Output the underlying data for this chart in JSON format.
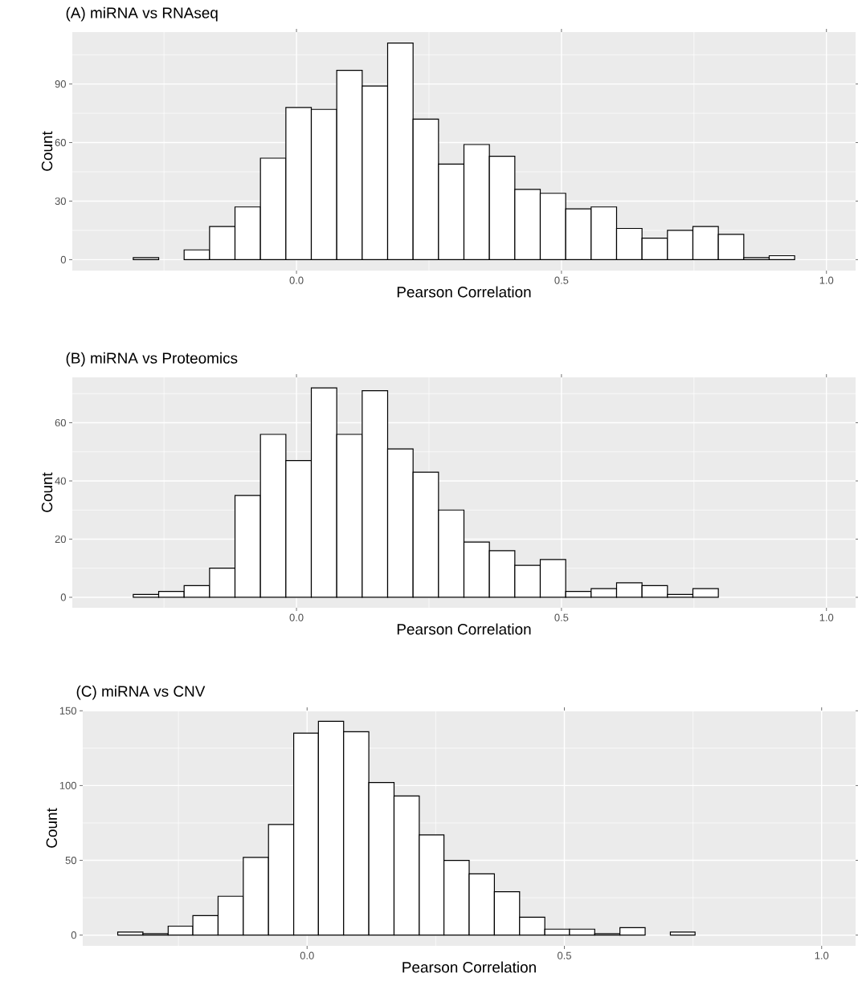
{
  "chart_data": [
    {
      "type": "histogram",
      "title": "(A) miRNA vs RNAseq",
      "xlabel": "Pearson Correlation",
      "ylabel": "Count",
      "color": "#ffffff",
      "grid": true,
      "bins": [
        -0.308,
        -0.26,
        -0.212,
        -0.164,
        -0.116,
        -0.068,
        -0.02,
        0.028,
        0.076,
        0.124,
        0.172,
        0.22,
        0.268,
        0.316,
        0.364,
        0.412,
        0.46,
        0.508,
        0.556,
        0.604,
        0.652,
        0.7,
        0.748,
        0.796,
        0.844,
        0.892,
        0.94
      ],
      "values": [
        1,
        0,
        5,
        17,
        27,
        52,
        78,
        77,
        97,
        89,
        111,
        72,
        49,
        59,
        53,
        36,
        34,
        26,
        27,
        16,
        11,
        15,
        17,
        13,
        1,
        2
      ],
      "xlim": [
        -0.423,
        1.055
      ],
      "ylim": [
        -5.6,
        116.6
      ],
      "xticks": [
        {
          "value": 0,
          "label": "0.0"
        },
        {
          "value": 0.5,
          "label": "0.5"
        },
        {
          "value": 1,
          "label": "1.0"
        }
      ],
      "yticks": [
        0,
        30,
        60,
        90
      ]
    },
    {
      "type": "histogram",
      "title": "(B) miRNA vs Proteomics",
      "xlabel": "Pearson Correlation",
      "ylabel": "Count",
      "color": "#ffffff",
      "grid": true,
      "bins": [
        -0.308,
        -0.26,
        -0.212,
        -0.164,
        -0.116,
        -0.068,
        -0.02,
        0.028,
        0.076,
        0.124,
        0.172,
        0.22,
        0.268,
        0.316,
        0.364,
        0.412,
        0.46,
        0.508,
        0.556,
        0.604,
        0.652,
        0.7,
        0.748,
        0.796
      ],
      "values": [
        1,
        2,
        4,
        10,
        35,
        56,
        47,
        72,
        56,
        71,
        51,
        43,
        30,
        19,
        16,
        11,
        13,
        2,
        3,
        5,
        4,
        1,
        3
      ],
      "xlim": [
        -0.423,
        1.055
      ],
      "ylim": [
        -3.6,
        75.6
      ],
      "xticks": [
        {
          "value": 0,
          "label": "0.0"
        },
        {
          "value": 0.5,
          "label": "0.5"
        },
        {
          "value": 1,
          "label": "1.0"
        }
      ],
      "yticks": [
        0,
        20,
        40,
        60
      ]
    },
    {
      "type": "histogram",
      "title": "(C) miRNA vs CNV",
      "xlabel": "Pearson Correlation",
      "ylabel": "Count",
      "color": "#ffffff",
      "grid": true,
      "bins": [
        -0.368,
        -0.319,
        -0.27,
        -0.222,
        -0.173,
        -0.124,
        -0.075,
        -0.026,
        0.022,
        0.071,
        0.12,
        0.169,
        0.218,
        0.266,
        0.315,
        0.364,
        0.413,
        0.462,
        0.51,
        0.559,
        0.608,
        0.657,
        0.706,
        0.754
      ],
      "values": [
        2,
        1,
        6,
        13,
        26,
        52,
        74,
        135,
        143,
        136,
        102,
        93,
        67,
        50,
        41,
        29,
        12,
        4,
        4,
        1,
        5,
        0,
        2
      ],
      "xlim": [
        -0.436,
        1.066
      ],
      "ylim": [
        -7.15,
        150.15
      ],
      "xticks": [
        {
          "value": 0,
          "label": "0.0"
        },
        {
          "value": 0.5,
          "label": "0.5"
        },
        {
          "value": 1,
          "label": "1.0"
        }
      ],
      "yticks": [
        0,
        50,
        100,
        150
      ]
    }
  ]
}
